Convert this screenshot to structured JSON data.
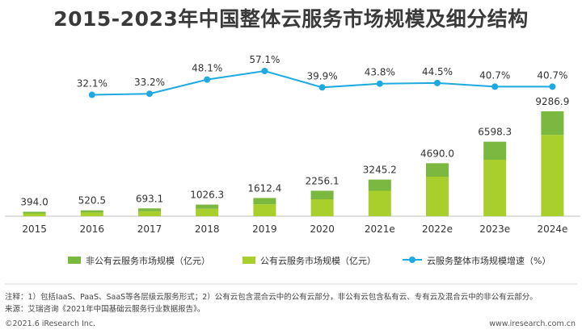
{
  "title": "2015-2023年中国整体云服务市场规模及细分结构",
  "chart_data": {
    "type": "bar",
    "stacked": true,
    "categories": [
      "2015",
      "2016",
      "2017",
      "2018",
      "2019",
      "2020",
      "2021e",
      "2022e",
      "2023e",
      "2024e"
    ],
    "totals": [
      "394.0",
      "520.5",
      "693.1",
      "1026.3",
      "1612.4",
      "2256.1",
      "3245.2",
      "4690.0",
      "6598.3",
      "9286.9"
    ],
    "series": [
      {
        "name": "公有云服务市场规模（亿元）",
        "color": "#a8cf2c",
        "values": [
          250,
          330,
          440,
          660,
          1060,
          1500,
          2250,
          3500,
          5000,
          7200
        ]
      },
      {
        "name": "非公有云服务市场规模（亿元）",
        "color": "#7ab83f",
        "values": [
          144,
          190.5,
          253.1,
          366.3,
          552.4,
          756.1,
          995.2,
          1190,
          1598.3,
          2086.9
        ]
      }
    ],
    "line": {
      "name": "云服务整体市场规模增速（%）",
      "color": "#1fa9e1",
      "x": [
        "2016",
        "2017",
        "2018",
        "2019",
        "2020",
        "2021e",
        "2022e",
        "2023e",
        "2024e"
      ],
      "values": [
        32.1,
        33.2,
        48.1,
        57.1,
        39.9,
        43.8,
        44.5,
        40.7,
        40.7
      ],
      "labels": [
        "32.1%",
        "33.2%",
        "48.1%",
        "57.1%",
        "39.9%",
        "43.8%",
        "44.5%",
        "40.7%",
        "40.7%"
      ]
    },
    "legend_order": [
      1,
      0,
      "line"
    ],
    "legend_position": "bottom"
  },
  "notes": {
    "note1": "注释：1）包括IaaS、PaaS、SaaS等各层级云服务形式；2）公有云包含混合云中的公有云部分，非公有云包含私有云、专有云及混合云中的非公有云部分。",
    "source": "来源：艾瑞咨询《2021年中国基础云服务行业数据报告》。"
  },
  "footer": {
    "copyright": "©2021.6 iResearch Inc.",
    "website": "www.iresearch.com.cn"
  }
}
